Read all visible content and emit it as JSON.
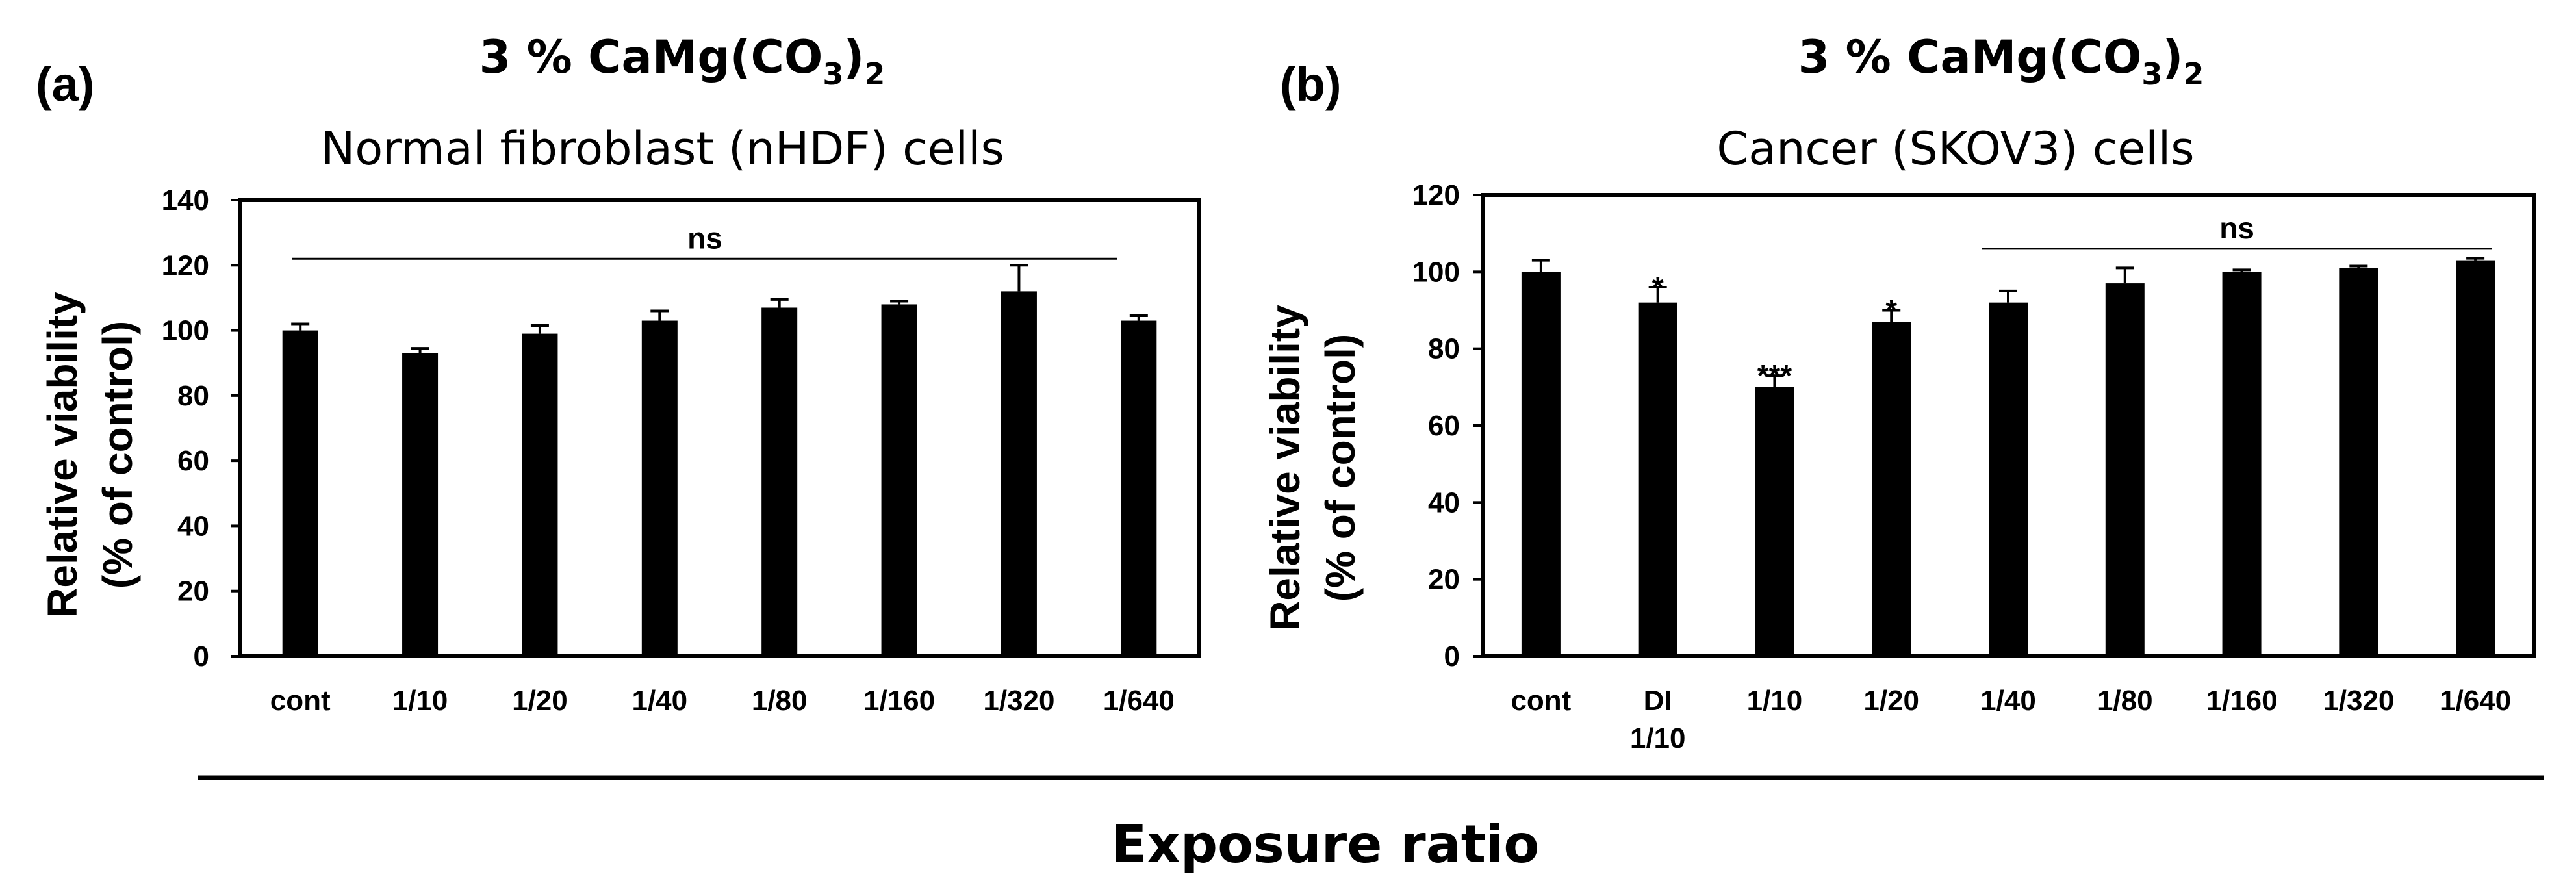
{
  "figure": {
    "xlabel": "Exposure ratio"
  },
  "chart_data": [
    {
      "type": "bar",
      "panel": "(a)",
      "title_main": "3 % CaMg(CO",
      "title_sub1": "3",
      "title_paren": ")",
      "title_sub2": "2",
      "subtitle": "Normal fibroblast (nHDF) cells",
      "ylabel_line1": "Relative viability",
      "ylabel_line2": "(% of control)",
      "ylim": [
        0,
        140
      ],
      "yticks": [
        0,
        20,
        40,
        60,
        80,
        100,
        120,
        140
      ],
      "categories": [
        [
          "cont"
        ],
        [
          "1/10"
        ],
        [
          "1/20"
        ],
        [
          "1/40"
        ],
        [
          "1/80"
        ],
        [
          "1/160"
        ],
        [
          "1/320"
        ],
        [
          "1/640"
        ]
      ],
      "values": [
        100,
        93,
        99,
        103,
        107,
        108,
        112,
        103
      ],
      "errors": [
        2,
        1.5,
        2.5,
        3,
        2.5,
        1,
        8,
        1.5
      ],
      "significance": [
        {
          "label": "ns",
          "from_index": 0,
          "to_index": 7,
          "y": 122
        }
      ],
      "bar_color": "#000000",
      "grid": false
    },
    {
      "type": "bar",
      "panel": "(b)",
      "title_main": "3 % CaMg(CO",
      "title_sub1": "3",
      "title_paren": ")",
      "title_sub2": "2",
      "subtitle": "Cancer (SKOV3) cells",
      "ylabel_line1": "Relative viability",
      "ylabel_line2": "(% of control)",
      "ylim": [
        0,
        120
      ],
      "yticks": [
        0,
        20,
        40,
        60,
        80,
        100,
        120
      ],
      "categories": [
        [
          "cont"
        ],
        [
          "DI",
          "1/10"
        ],
        [
          "1/10"
        ],
        [
          "1/20"
        ],
        [
          "1/40"
        ],
        [
          "1/80"
        ],
        [
          "1/160"
        ],
        [
          "1/320"
        ],
        [
          "1/640"
        ]
      ],
      "values": [
        100,
        92,
        70,
        87,
        92,
        97,
        100,
        101,
        103
      ],
      "errors": [
        3,
        4,
        3,
        3,
        3,
        4,
        0.5,
        0.5,
        0.5
      ],
      "markers": [
        "",
        "*",
        "***",
        "*",
        "",
        "",
        "",
        "",
        ""
      ],
      "significance": [
        {
          "label": "ns",
          "from_index": 4,
          "to_index": 8,
          "y": 106
        }
      ],
      "bar_color": "#000000",
      "grid": false
    }
  ]
}
